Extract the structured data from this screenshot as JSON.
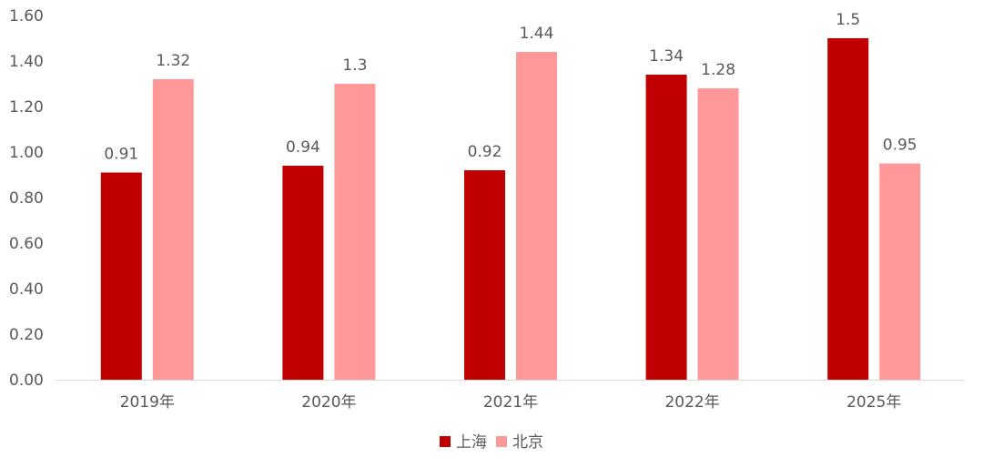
{
  "chart_data": {
    "type": "bar",
    "categories": [
      "2019年",
      "2020年",
      "2021年",
      "2022年",
      "2025年"
    ],
    "series": [
      {
        "name": "上海",
        "color": "#c00000",
        "values": [
          0.91,
          0.94,
          0.92,
          1.34,
          1.5
        ],
        "labels": [
          "0.91",
          "0.94",
          "0.92",
          "1.34",
          "1.5"
        ]
      },
      {
        "name": "北京",
        "color": "#ff9999",
        "values": [
          1.32,
          1.3,
          1.44,
          1.28,
          0.95
        ],
        "labels": [
          "1.32",
          "1.3",
          "1.44",
          "1.28",
          "0.95"
        ]
      }
    ],
    "ylim": [
      0,
      1.6
    ],
    "yticks": [
      "0.00",
      "0.20",
      "0.40",
      "0.60",
      "0.80",
      "1.00",
      "1.20",
      "1.40",
      "1.60"
    ],
    "grid": false,
    "legend_position": "bottom-center",
    "title": "",
    "xlabel": "",
    "ylabel": ""
  }
}
